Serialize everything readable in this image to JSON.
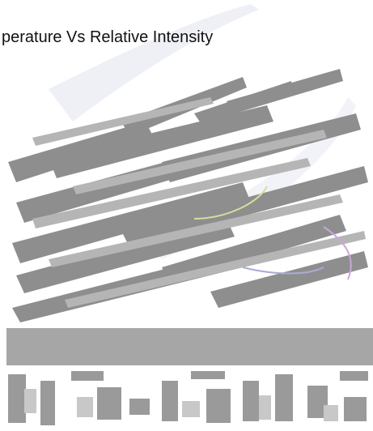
{
  "title": "perature Vs Relative Intensity"
}
